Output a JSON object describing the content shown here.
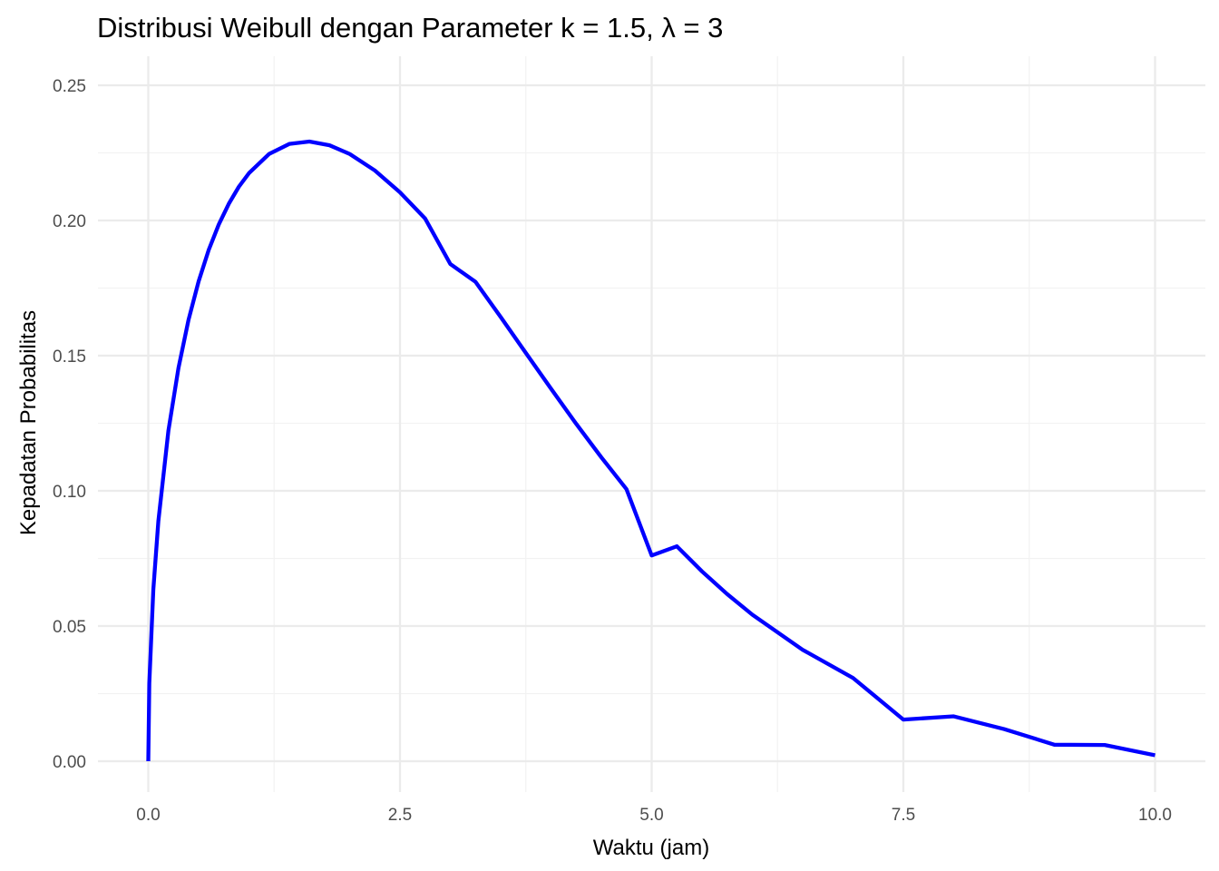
{
  "chart_data": {
    "type": "line",
    "title": "Distribusi Weibull dengan Parameter k = 1.5, λ = 3",
    "xlabel": "Waktu (jam)",
    "ylabel": "Kepadatan Probabilitas",
    "xlim": [
      0,
      10
    ],
    "ylim": [
      0,
      0.25
    ],
    "x_ticks": [
      0,
      2.5,
      5,
      7.5,
      10
    ],
    "x_tick_labels": [
      "0.0",
      "2.5",
      "5.0",
      "7.5",
      "10.0"
    ],
    "y_ticks": [
      0,
      0.05,
      0.1,
      0.15,
      0.2,
      0.25
    ],
    "y_tick_labels": [
      "0.00",
      "0.05",
      "0.10",
      "0.15",
      "0.20",
      "0.25"
    ],
    "grid": true,
    "line_color": "#0000ff",
    "series": [
      {
        "x": [
          0,
          0.01,
          0.05,
          0.1,
          0.2,
          0.3,
          0.4,
          0.5,
          0.6,
          0.7,
          0.8,
          0.9,
          1.0,
          1.2,
          1.4,
          1.6,
          1.8,
          2.0,
          2.25,
          2.5,
          2.75,
          3.0,
          3.25,
          3.5,
          3.75,
          4.0,
          4.25,
          4.5,
          4.75,
          5.0,
          5.25,
          5.5,
          5.75,
          6.0,
          6.5,
          7.0,
          7.5,
          8.0,
          8.5,
          9.0,
          9.5,
          10.0
        ],
        "y": [
          0,
          0.0288,
          0.0635,
          0.0888,
          0.1223,
          0.1455,
          0.1633,
          0.1775,
          0.1891,
          0.1985,
          0.2062,
          0.2125,
          0.2175,
          0.2246,
          0.2283,
          0.2292,
          0.2278,
          0.2246,
          0.2185,
          0.2104,
          0.2007,
          0.1839,
          0.1773,
          0.1643,
          0.151,
          0.1378,
          0.1248,
          0.1124,
          0.1006,
          0.0761,
          0.0795,
          0.0702,
          0.0618,
          0.0542,
          0.0412,
          0.0308,
          0.0154,
          0.0166,
          0.0119,
          0.0061,
          0.006,
          0.0022
        ]
      }
    ]
  }
}
